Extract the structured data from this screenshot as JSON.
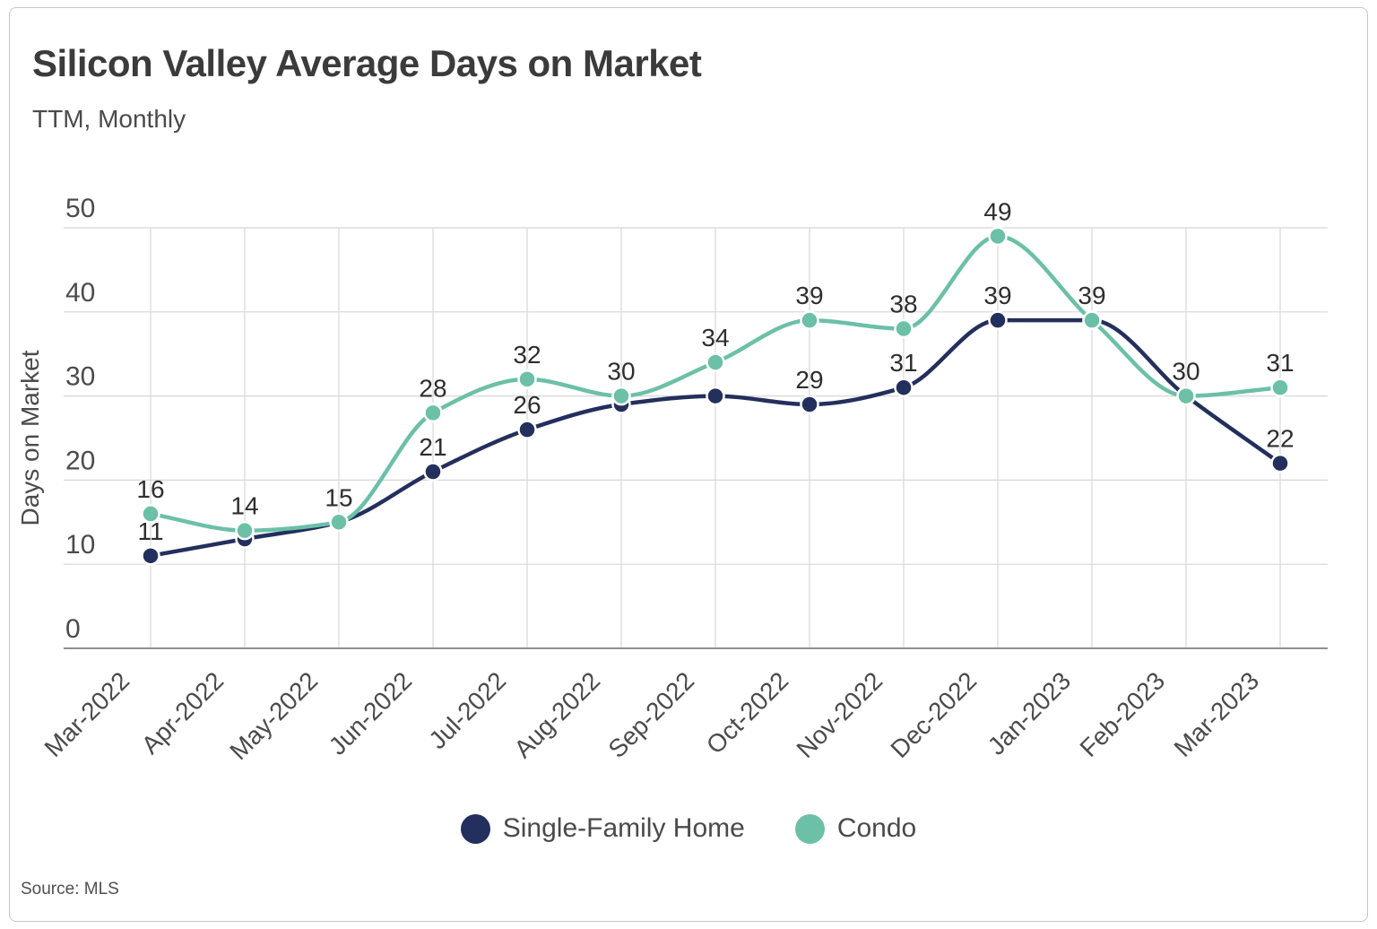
{
  "header": {
    "title": "Silicon Valley Average Days on Market",
    "subtitle": "TTM, Monthly"
  },
  "footer": {
    "source": "Source: MLS"
  },
  "colors": {
    "single_family": "#232f5c",
    "condo": "#6bc0a7",
    "gridline": "#d7d7d7",
    "axis_line": "#8f8f8f",
    "axis_text": "#4b4b4b",
    "data_label": "#2e2e2e",
    "marker_stroke": "#ffffff"
  },
  "chart_data": {
    "type": "line",
    "title": "Silicon Valley Average Days on Market",
    "subtitle": "TTM, Monthly",
    "xlabel": "",
    "ylabel": "Days on Market",
    "ylim": [
      0,
      50
    ],
    "yticks": [
      0,
      10,
      20,
      30,
      40,
      50
    ],
    "grid": true,
    "legend_position": "bottom",
    "categories": [
      "Mar-2022",
      "Apr-2022",
      "May-2022",
      "Jun-2022",
      "Jul-2022",
      "Aug-2022",
      "Sep-2022",
      "Oct-2022",
      "Nov-2022",
      "Dec-2022",
      "Jan-2023",
      "Feb-2023",
      "Mar-2023"
    ],
    "series": [
      {
        "name": "Single-Family Home",
        "color": "#232f5c",
        "values": [
          11,
          13,
          15,
          21,
          26,
          29,
          30,
          29,
          31,
          39,
          39,
          30,
          22
        ],
        "visible_labels": [
          11,
          null,
          null,
          21,
          26,
          null,
          null,
          29,
          31,
          39,
          null,
          null,
          22
        ]
      },
      {
        "name": "Condo",
        "color": "#6bc0a7",
        "values": [
          16,
          14,
          15,
          28,
          32,
          30,
          34,
          39,
          38,
          49,
          39,
          30,
          31
        ],
        "visible_labels": [
          16,
          14,
          15,
          28,
          32,
          30,
          34,
          39,
          38,
          49,
          39,
          30,
          31
        ]
      }
    ]
  }
}
